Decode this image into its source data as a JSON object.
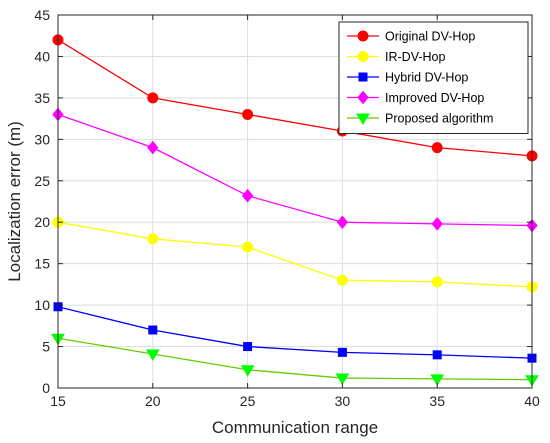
{
  "chart_data": {
    "type": "line",
    "x": [
      15,
      20,
      25,
      30,
      35,
      40
    ],
    "xlabel": "Communication range",
    "ylabel": "Localization error (m)",
    "xlim": [
      15,
      40
    ],
    "ylim": [
      0,
      45
    ],
    "xticks": [
      15,
      20,
      25,
      30,
      35,
      40
    ],
    "yticks": [
      0,
      5,
      10,
      15,
      20,
      25,
      30,
      35,
      40,
      45
    ],
    "grid": true,
    "legend_position": "top-right",
    "series": [
      {
        "name": "Original DV-Hop",
        "values": [
          42,
          35,
          33,
          31,
          29,
          28
        ],
        "color": "#ff0000",
        "marker": "circle"
      },
      {
        "name": "IR-DV-Hop",
        "values": [
          20,
          18,
          17,
          13,
          12.8,
          12.2
        ],
        "color": "#ffff00",
        "marker": "circle"
      },
      {
        "name": "Hybrid DV-Hop",
        "values": [
          9.8,
          7,
          5,
          4.3,
          4,
          3.6
        ],
        "color": "#0000ff",
        "marker": "square"
      },
      {
        "name": "Improved DV-Hop",
        "values": [
          33,
          29,
          23.2,
          20,
          19.8,
          19.6
        ],
        "color": "#ff00ff",
        "marker": "diamond"
      },
      {
        "name": "Proposed algorithm",
        "values": [
          6,
          4.1,
          2.2,
          1.2,
          1.1,
          1.0
        ],
        "color": "#00ff00",
        "line_color": "#66cc00",
        "marker": "triangle-down"
      }
    ]
  }
}
